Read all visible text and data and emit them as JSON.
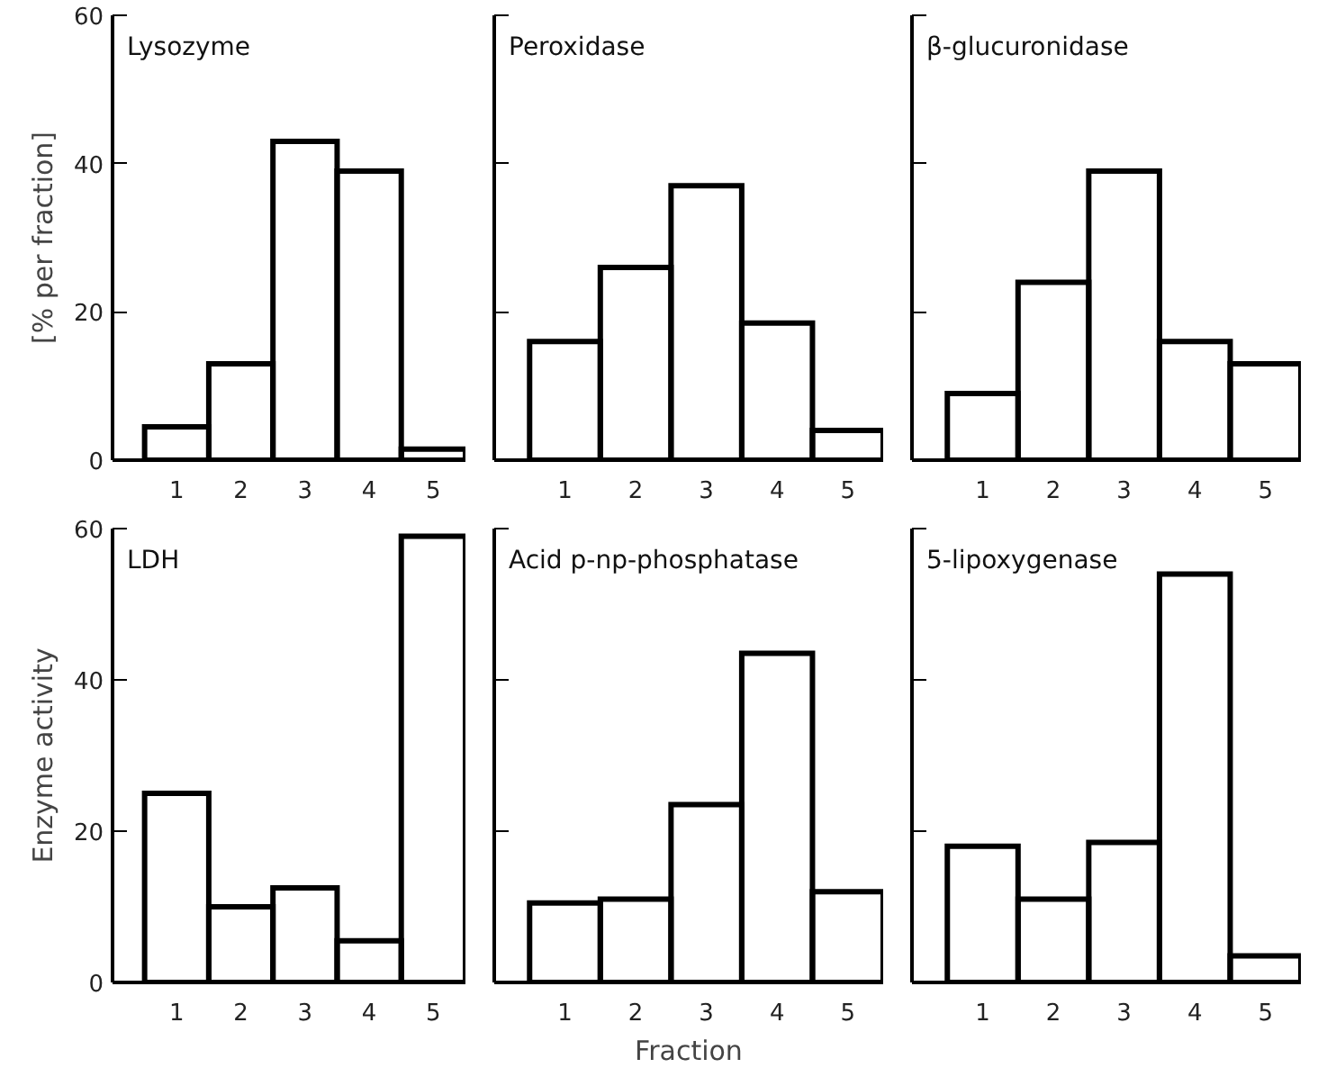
{
  "chart_data": [
    {
      "type": "histogram",
      "title": "Lysozyme",
      "bins": [
        0.5,
        1.5,
        2.5,
        3.5,
        4.5,
        5.5
      ],
      "values": [
        4.5,
        13,
        43,
        39,
        1.5
      ],
      "color": "#000000",
      "xlim": [
        0,
        5.5
      ],
      "ylim": [
        0,
        60
      ],
      "xticks": [
        1,
        2,
        3,
        4,
        5
      ],
      "yticks": [
        0,
        20,
        40,
        60
      ],
      "ylabel": "[% per fraction]"
    },
    {
      "type": "histogram",
      "title": "Peroxidase",
      "bins": [
        0.5,
        1.5,
        2.5,
        3.5,
        4.5,
        5.5
      ],
      "values": [
        16,
        26,
        37,
        18.5,
        4
      ],
      "color": "#000000",
      "xlim": [
        0,
        5.5
      ],
      "ylim": [
        0,
        60
      ],
      "xticks": [
        1,
        2,
        3,
        4,
        5
      ],
      "yticks": [
        0,
        20,
        40,
        60
      ],
      "tick_labels": "x"
    },
    {
      "type": "histogram",
      "title": "β-glucuronidase",
      "bins": [
        0.5,
        1.5,
        2.5,
        3.5,
        4.5,
        5.5
      ],
      "values": [
        9,
        24,
        39,
        16,
        13
      ],
      "color": "#000000",
      "xlim": [
        0,
        5.5
      ],
      "ylim": [
        0,
        60
      ],
      "xticks": [
        1,
        2,
        3,
        4,
        5
      ],
      "yticks": [
        0,
        20,
        40,
        60
      ],
      "tick_labels": "x"
    },
    {
      "type": "histogram",
      "title": "LDH",
      "bins": [
        0.5,
        1.5,
        2.5,
        3.5,
        4.5,
        5.5
      ],
      "values": [
        25,
        10,
        12.5,
        5.5,
        59
      ],
      "color": "#000000",
      "xlim": [
        0,
        5.5
      ],
      "ylim": [
        0,
        60
      ],
      "xticks": [
        1,
        2,
        3,
        4,
        5
      ],
      "yticks": [
        0,
        20,
        40,
        60
      ],
      "ylabel": "Enzyme activity"
    },
    {
      "type": "histogram",
      "title": "Acid p-np-phosphatase",
      "bins": [
        0.5,
        1.5,
        2.5,
        3.5,
        4.5,
        5.5
      ],
      "values": [
        10.5,
        11,
        23.5,
        43.5,
        12
      ],
      "color": "#000000",
      "xlim": [
        0,
        5.5
      ],
      "ylim": [
        0,
        60
      ],
      "xticks": [
        1,
        2,
        3,
        4,
        5
      ],
      "yticks": [
        0,
        20,
        40,
        60
      ],
      "tick_labels": "x",
      "xlabel": "Fraction"
    },
    {
      "type": "histogram",
      "title": "5-lipoxygenase",
      "bins": [
        0.5,
        1.5,
        2.5,
        3.5,
        4.5,
        5.5
      ],
      "values": [
        18,
        11,
        18.5,
        54,
        3.5
      ],
      "color": "#000000",
      "xlim": [
        0,
        5.5
      ],
      "ylim": [
        0,
        60
      ],
      "xticks": [
        1,
        2,
        3,
        4,
        5
      ],
      "yticks": [
        0,
        20,
        40,
        60
      ],
      "tick_labels": "x"
    }
  ]
}
